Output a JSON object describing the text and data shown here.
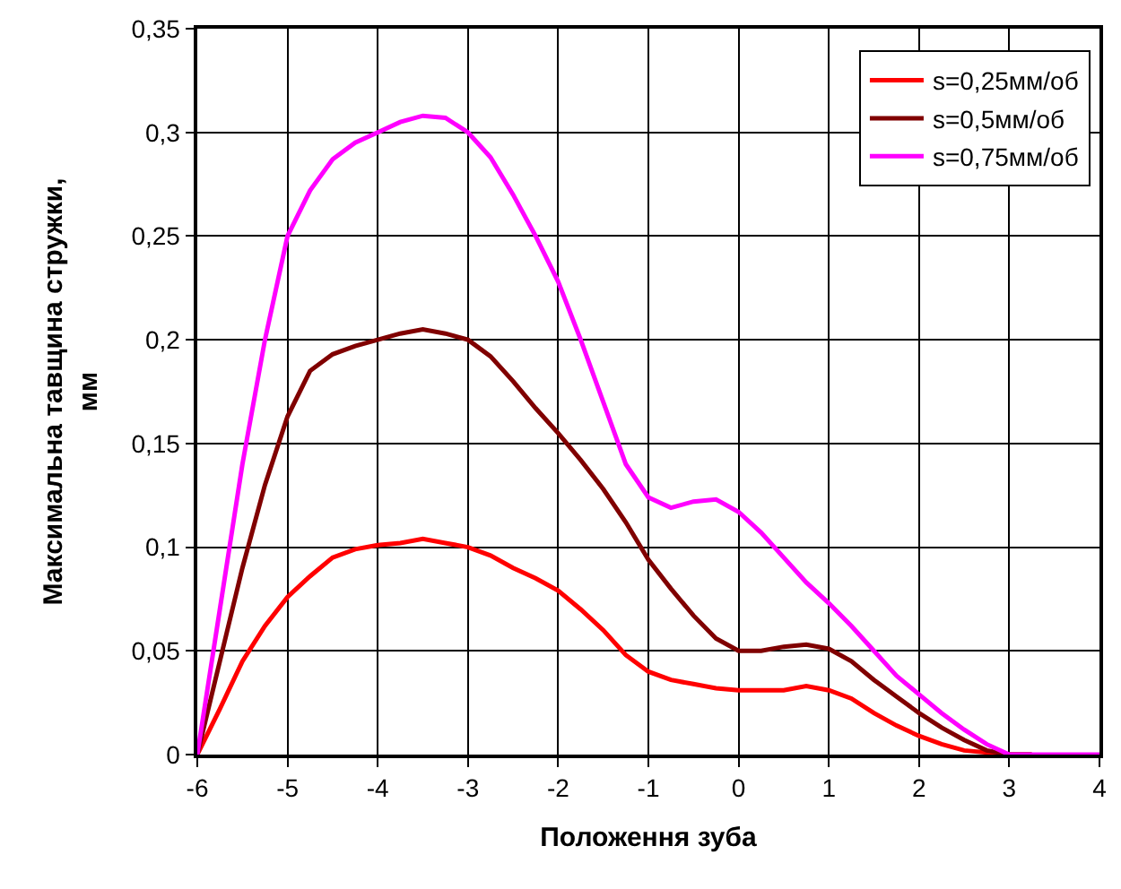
{
  "chart_data": {
    "type": "line",
    "xlabel": "Положення зуба",
    "ylabel": "Максимальна тавщина стружки,\nмм",
    "x": [
      -6,
      -5.75,
      -5.5,
      -5.25,
      -5,
      -4.75,
      -4.5,
      -4.25,
      -4,
      -3.75,
      -3.5,
      -3.25,
      -3,
      -2.75,
      -2.5,
      -2.25,
      -2,
      -1.75,
      -1.5,
      -1.25,
      -1,
      -0.75,
      -0.5,
      -0.25,
      0,
      0.25,
      0.5,
      0.75,
      1,
      1.25,
      1.5,
      1.75,
      2,
      2.25,
      2.5,
      2.75,
      3,
      3.25,
      3.5,
      3.75,
      4
    ],
    "series": [
      {
        "name": "s=0,25мм/об",
        "color": "#ff0000",
        "values": [
          0,
          0.022,
          0.045,
          0.062,
          0.076,
          0.086,
          0.095,
          0.099,
          0.101,
          0.102,
          0.104,
          0.102,
          0.1,
          0.096,
          0.09,
          0.085,
          0.079,
          0.07,
          0.06,
          0.048,
          0.04,
          0.036,
          0.034,
          0.032,
          0.031,
          0.031,
          0.031,
          0.033,
          0.031,
          0.027,
          0.02,
          0.014,
          0.009,
          0.005,
          0.002,
          0.001,
          0,
          0,
          null,
          null,
          null
        ]
      },
      {
        "name": "s=0,5мм/об",
        "color": "#800000",
        "values": [
          0,
          0.045,
          0.09,
          0.13,
          0.163,
          0.185,
          0.193,
          0.197,
          0.2,
          0.203,
          0.205,
          0.203,
          0.2,
          0.192,
          0.18,
          0.167,
          0.155,
          0.142,
          0.128,
          0.112,
          0.094,
          0.08,
          0.067,
          0.056,
          0.05,
          0.05,
          0.052,
          0.053,
          0.051,
          0.045,
          0.036,
          0.028,
          0.02,
          0.013,
          0.007,
          0.002,
          0,
          0,
          null,
          null,
          null
        ]
      },
      {
        "name": "s=0,75мм/об",
        "color": "#ff00ff",
        "values": [
          0,
          0.07,
          0.14,
          0.2,
          0.25,
          0.272,
          0.287,
          0.295,
          0.3,
          0.305,
          0.308,
          0.307,
          0.3,
          0.288,
          0.27,
          0.25,
          0.228,
          0.2,
          0.17,
          0.14,
          0.124,
          0.119,
          0.122,
          0.123,
          0.117,
          0.107,
          0.095,
          0.083,
          0.073,
          0.062,
          0.05,
          0.038,
          0.029,
          0.02,
          0.012,
          0.005,
          0,
          0,
          0,
          0,
          0
        ]
      }
    ],
    "xlim": [
      -6,
      4
    ],
    "xticks": [
      -6,
      -5,
      -4,
      -3,
      -2,
      -1,
      0,
      1,
      2,
      3,
      4
    ],
    "ylim": [
      0,
      0.35
    ],
    "yticks": [
      0,
      {
        "value": 0.05,
        "label": "0,05"
      },
      {
        "value": 0.1,
        "label": "0,1"
      },
      {
        "value": 0.15,
        "label": "0,15"
      },
      {
        "value": 0.2,
        "label": "0,2"
      },
      {
        "value": 0.25,
        "label": "0,25"
      },
      {
        "value": 0.3,
        "label": "0,3"
      },
      {
        "value": 0.35,
        "label": "0,35"
      }
    ],
    "grid": true,
    "legend": "top right",
    "marker": "none",
    "line_style": "solid"
  }
}
